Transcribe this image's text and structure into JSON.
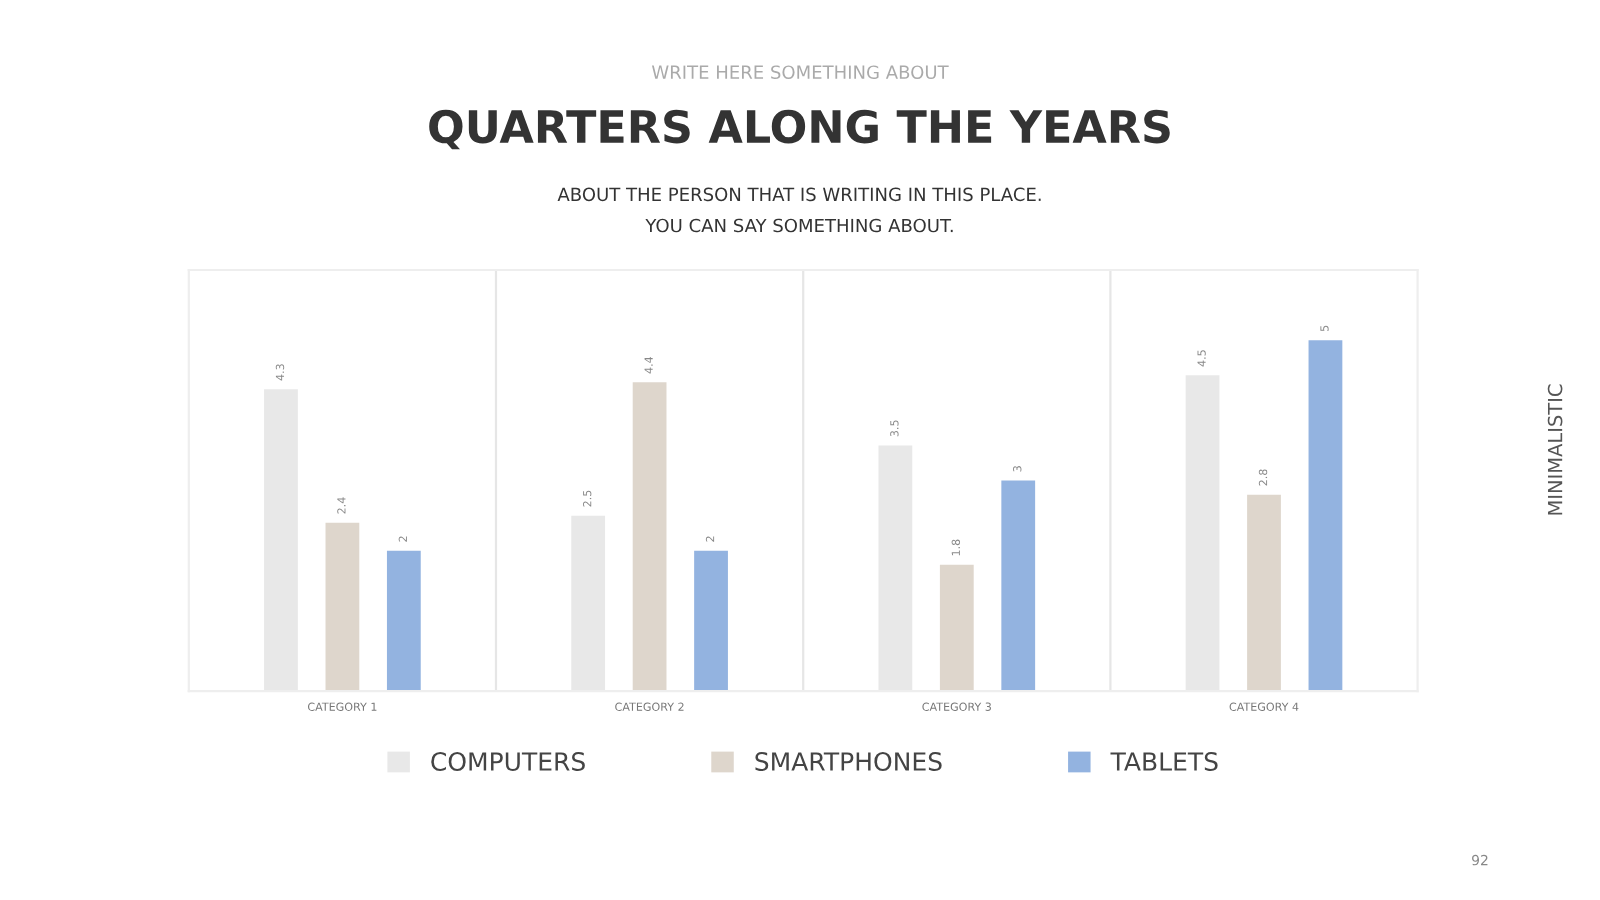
{
  "chart_data": {
    "type": "bar",
    "title": "QUARTERS ALONG THE YEARS",
    "subtitle": "ABOUT THE PERSON THAT IS WRITING IN THIS PLACE.\nYOU CAN SAY SOMETHING ABOUT.",
    "annotations": [
      "WRITE HERE SOMETHING ABOUT",
      "MINIMALISTIC",
      "92"
    ],
    "categories": [
      "CATEGORY 1",
      "CATEGORY 2",
      "CATEGORY 3",
      "CATEGORY 4"
    ],
    "series": [
      {
        "name": "COMPUTERS",
        "color": "#e8e8e8",
        "values": [
          4.3,
          2.5,
          3.5,
          4.5
        ]
      },
      {
        "name": "SMARTPHONES",
        "color": "#ded6cc",
        "values": [
          2.4,
          4.4,
          1.8,
          2.8
        ]
      },
      {
        "name": "TABLETS",
        "color": "#93b3e0",
        "values": [
          2,
          2,
          3,
          5
        ]
      }
    ],
    "data_labels": true,
    "grid": "x",
    "legend": "bottom",
    "tick_labels": "x"
  }
}
